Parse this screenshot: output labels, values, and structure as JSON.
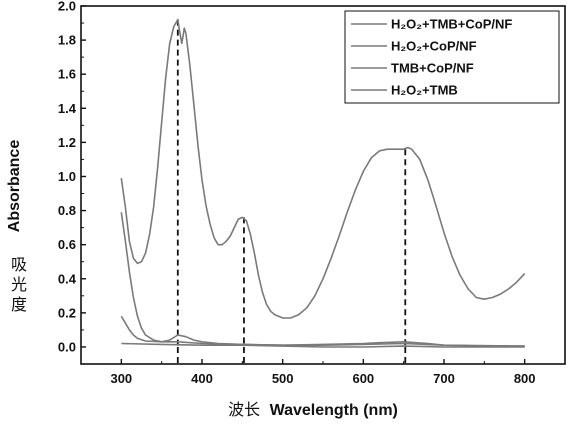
{
  "chart_data": {
    "type": "line",
    "xlabel_cn": "波长",
    "xlabel": "Wavelength (nm)",
    "ylabel": "Absorbance",
    "ylabel_cn": "吸光度",
    "xlim": [
      250,
      850
    ],
    "ylim": [
      -0.1,
      2.0
    ],
    "xticks": [
      300,
      400,
      500,
      600,
      700,
      800
    ],
    "yticks": [
      0.0,
      0.2,
      0.4,
      0.6,
      0.8,
      1.0,
      1.2,
      1.4,
      1.6,
      1.8,
      2.0
    ],
    "legend_position": "top-right",
    "colors": {
      "line": "#7a7a7a",
      "axis": "#111111"
    },
    "reference_lines_x": [
      370,
      452,
      652
    ],
    "series": [
      {
        "name": "H₂O₂+TMB+CoP/NF",
        "points": [
          [
            300,
            0.99
          ],
          [
            305,
            0.82
          ],
          [
            310,
            0.62
          ],
          [
            315,
            0.52
          ],
          [
            320,
            0.49
          ],
          [
            325,
            0.5
          ],
          [
            330,
            0.55
          ],
          [
            335,
            0.66
          ],
          [
            340,
            0.82
          ],
          [
            345,
            1.05
          ],
          [
            350,
            1.32
          ],
          [
            355,
            1.58
          ],
          [
            360,
            1.78
          ],
          [
            365,
            1.88
          ],
          [
            370,
            1.92
          ],
          [
            372,
            1.86
          ],
          [
            375,
            1.78
          ],
          [
            378,
            1.87
          ],
          [
            380,
            1.84
          ],
          [
            385,
            1.65
          ],
          [
            390,
            1.42
          ],
          [
            395,
            1.18
          ],
          [
            400,
            0.98
          ],
          [
            405,
            0.83
          ],
          [
            410,
            0.72
          ],
          [
            415,
            0.64
          ],
          [
            420,
            0.6
          ],
          [
            425,
            0.6
          ],
          [
            430,
            0.62
          ],
          [
            435,
            0.65
          ],
          [
            440,
            0.7
          ],
          [
            445,
            0.75
          ],
          [
            450,
            0.76
          ],
          [
            455,
            0.74
          ],
          [
            460,
            0.66
          ],
          [
            465,
            0.55
          ],
          [
            470,
            0.42
          ],
          [
            475,
            0.32
          ],
          [
            480,
            0.25
          ],
          [
            485,
            0.21
          ],
          [
            490,
            0.19
          ],
          [
            500,
            0.17
          ],
          [
            510,
            0.17
          ],
          [
            520,
            0.19
          ],
          [
            530,
            0.23
          ],
          [
            540,
            0.3
          ],
          [
            550,
            0.4
          ],
          [
            560,
            0.52
          ],
          [
            570,
            0.65
          ],
          [
            580,
            0.79
          ],
          [
            590,
            0.92
          ],
          [
            600,
            1.03
          ],
          [
            610,
            1.11
          ],
          [
            620,
            1.15
          ],
          [
            630,
            1.16
          ],
          [
            640,
            1.16
          ],
          [
            650,
            1.16
          ],
          [
            655,
            1.17
          ],
          [
            660,
            1.16
          ],
          [
            670,
            1.1
          ],
          [
            680,
            0.98
          ],
          [
            690,
            0.83
          ],
          [
            700,
            0.67
          ],
          [
            710,
            0.53
          ],
          [
            720,
            0.42
          ],
          [
            730,
            0.34
          ],
          [
            740,
            0.29
          ],
          [
            750,
            0.28
          ],
          [
            760,
            0.29
          ],
          [
            770,
            0.31
          ],
          [
            780,
            0.34
          ],
          [
            790,
            0.38
          ],
          [
            800,
            0.43
          ]
        ]
      },
      {
        "name": "H₂O₂+CoP/NF",
        "points": [
          [
            300,
            0.79
          ],
          [
            305,
            0.62
          ],
          [
            310,
            0.44
          ],
          [
            315,
            0.29
          ],
          [
            320,
            0.18
          ],
          [
            325,
            0.11
          ],
          [
            330,
            0.07
          ],
          [
            340,
            0.04
          ],
          [
            350,
            0.03
          ],
          [
            360,
            0.04
          ],
          [
            370,
            0.07
          ],
          [
            380,
            0.06
          ],
          [
            390,
            0.04
          ],
          [
            400,
            0.03
          ],
          [
            420,
            0.02
          ],
          [
            450,
            0.015
          ],
          [
            500,
            0.01
          ],
          [
            550,
            0.015
          ],
          [
            600,
            0.02
          ],
          [
            620,
            0.025
          ],
          [
            650,
            0.03
          ],
          [
            680,
            0.02
          ],
          [
            700,
            0.01
          ],
          [
            750,
            0.005
          ],
          [
            800,
            0.005
          ]
        ]
      },
      {
        "name": "TMB+CoP/NF",
        "points": [
          [
            300,
            0.18
          ],
          [
            305,
            0.14
          ],
          [
            310,
            0.1
          ],
          [
            315,
            0.07
          ],
          [
            320,
            0.05
          ],
          [
            330,
            0.035
          ],
          [
            350,
            0.03
          ],
          [
            370,
            0.03
          ],
          [
            400,
            0.02
          ],
          [
            450,
            0.015
          ],
          [
            500,
            0.01
          ],
          [
            550,
            0.01
          ],
          [
            600,
            0.015
          ],
          [
            650,
            0.02
          ],
          [
            700,
            0.01
          ],
          [
            800,
            0.005
          ]
        ]
      },
      {
        "name": "H₂O₂+TMB",
        "points": [
          [
            300,
            0.02
          ],
          [
            350,
            0.015
          ],
          [
            400,
            0.01
          ],
          [
            450,
            0.01
          ],
          [
            500,
            0.005
          ],
          [
            550,
            0.0
          ],
          [
            600,
            0.0
          ],
          [
            650,
            0.005
          ],
          [
            700,
            0.0
          ],
          [
            800,
            0.0
          ]
        ]
      }
    ]
  }
}
